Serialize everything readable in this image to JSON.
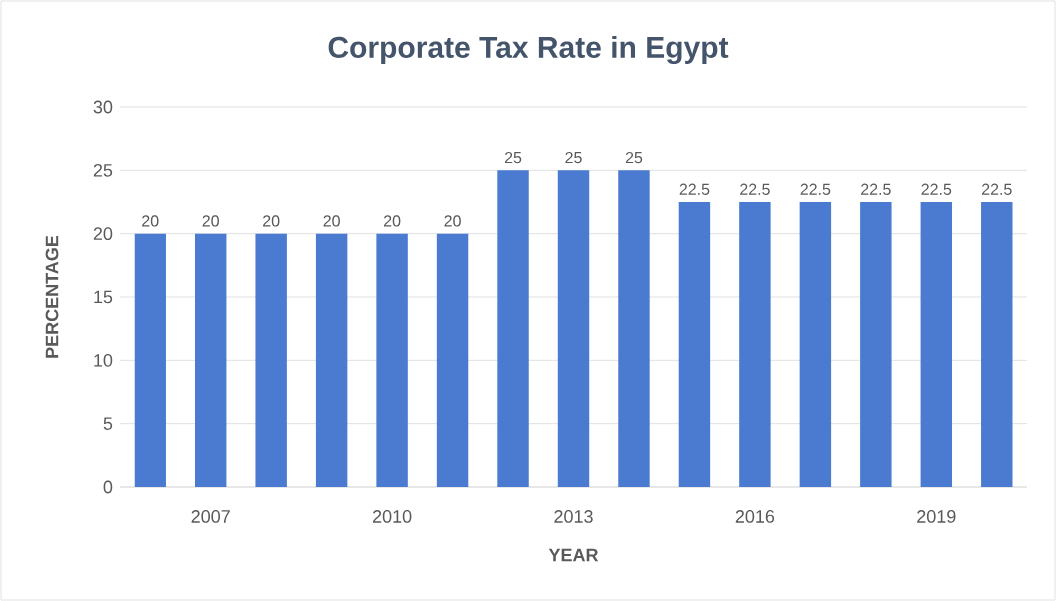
{
  "chart_data": {
    "type": "bar",
    "title": "Corporate Tax Rate in Egypt",
    "xlabel": "YEAR",
    "ylabel": "PERCENTAGE",
    "categories": [
      null,
      "2007",
      null,
      null,
      "2010",
      null,
      null,
      "2013",
      null,
      null,
      "2016",
      null,
      null,
      "2019",
      null
    ],
    "values": [
      20,
      20,
      20,
      20,
      20,
      20,
      25,
      25,
      25,
      22.5,
      22.5,
      22.5,
      22.5,
      22.5,
      22.5
    ],
    "color": "#4a7bd0",
    "ylim": [
      0,
      30
    ],
    "yticks": [
      0,
      5,
      10,
      15,
      20,
      25,
      30
    ],
    "grid": "y",
    "data_labels": true
  }
}
